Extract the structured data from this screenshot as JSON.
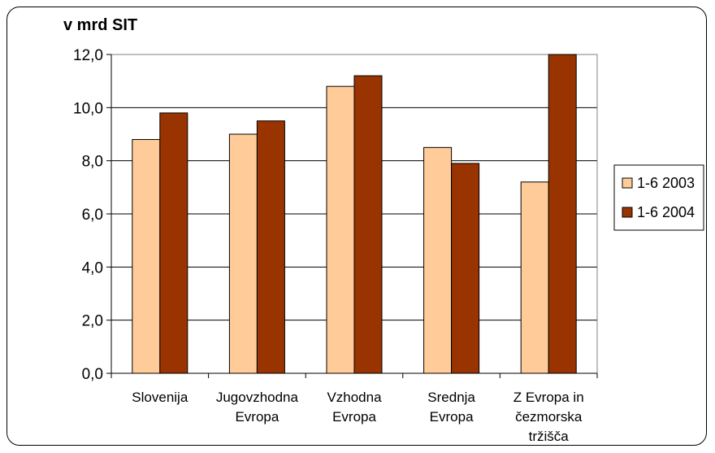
{
  "chart_data": {
    "type": "bar",
    "ylabel": "v mrd SIT",
    "categories": [
      [
        "Slovenija"
      ],
      [
        "Jugovzhodna",
        "Evropa"
      ],
      [
        "Vzhodna",
        "Evropa"
      ],
      [
        "Srednja",
        "Evropa"
      ],
      [
        "Z Evropa in",
        "čezmorska",
        "tržišča"
      ]
    ],
    "series": [
      {
        "name": "1-6 2003",
        "color": "#FFCC99",
        "values": [
          8.8,
          9.0,
          10.8,
          8.5,
          7.2
        ]
      },
      {
        "name": "1-6 2004",
        "color": "#993300",
        "values": [
          9.8,
          9.5,
          11.2,
          7.9,
          12.2
        ]
      }
    ],
    "ylim": [
      0,
      12
    ],
    "yticks": [
      "0,0",
      "2,0",
      "4,0",
      "6,0",
      "8,0",
      "10,0",
      "12,0"
    ],
    "grid": true,
    "legend_position": "right"
  }
}
